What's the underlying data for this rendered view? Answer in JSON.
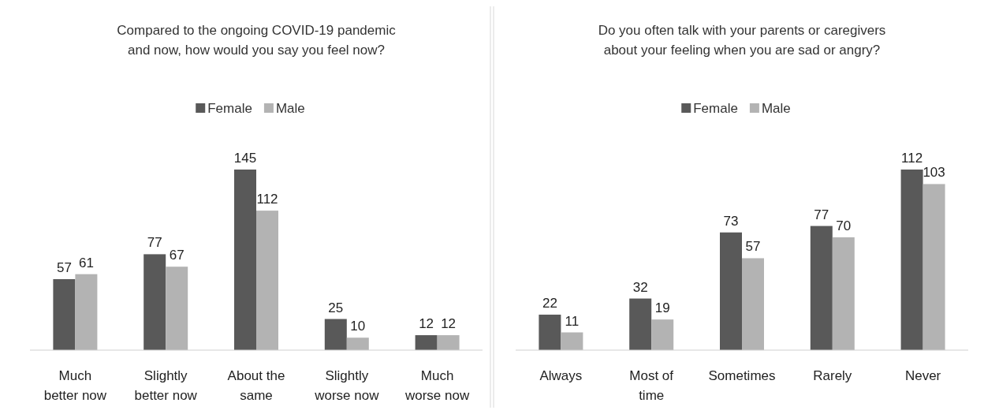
{
  "chart_data": [
    {
      "type": "bar",
      "title": "Compared to the ongoing COVID-19 pandemic and now, how would you say you feel now?",
      "categories": [
        "Much better now",
        "Slightly better now",
        "About the same",
        "Slightly worse now",
        "Much worse now"
      ],
      "series": [
        {
          "name": "Female",
          "color": "#595959",
          "values": [
            57,
            77,
            145,
            25,
            12
          ]
        },
        {
          "name": "Male",
          "color": "#b3b3b3",
          "values": [
            61,
            67,
            112,
            10,
            12
          ]
        }
      ],
      "data_labels": true,
      "legend": "top"
    },
    {
      "type": "bar",
      "title": "Do you often talk with your parents or caregivers about your feeling when you are sad or angry?",
      "categories": [
        "Always",
        "Most of time",
        "Sometimes",
        "Rarely",
        "Never"
      ],
      "series": [
        {
          "name": "Female",
          "color": "#595959",
          "values": [
            22,
            32,
            73,
            77,
            112
          ]
        },
        {
          "name": "Male",
          "color": "#b3b3b3",
          "values": [
            11,
            19,
            57,
            70,
            103
          ]
        }
      ],
      "data_labels": true,
      "legend": "top"
    }
  ]
}
